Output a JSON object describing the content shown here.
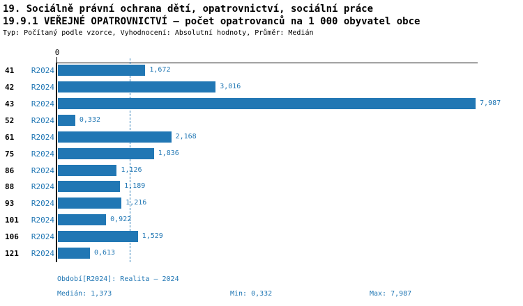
{
  "header": {
    "title_line1": "19. Sociálně právní ochrana dětí, opatrovnictví, sociální práce",
    "title_line2": "19.9.1 VEŘEJNÉ OPATROVNICTVÍ – počet opatrovanců na 1 000 obyvatel obce",
    "subtitle": "Typ: Počítaný podle vzorce, Vyhodnocení: Absolutní hodnoty, Průměr: Medián"
  },
  "chart_data": {
    "type": "bar",
    "orientation": "horizontal",
    "title": "19.9.1 VEŘEJNÉ OPATROVNICTVÍ – počet opatrovanců na 1 000 obyvatel obce",
    "categories": [
      "41",
      "42",
      "43",
      "52",
      "61",
      "75",
      "86",
      "88",
      "93",
      "101",
      "106",
      "121"
    ],
    "series_label": "R2024",
    "values": [
      1.672,
      3.016,
      7.987,
      0.332,
      2.168,
      1.836,
      1.126,
      1.189,
      1.216,
      0.922,
      1.529,
      0.613
    ],
    "value_labels": [
      "1,672",
      "3,016",
      "7,987",
      "0,332",
      "2,168",
      "1,836",
      "1,126",
      "1,189",
      "1,216",
      "0,922",
      "1,529",
      "0,613"
    ],
    "xlim": [
      0,
      8.03
    ],
    "zero_tick_label": "0",
    "median_line_value": 1.373,
    "median_value_label": "1,373",
    "bar_color": "#2177B4",
    "axis_color": "#000000",
    "grid": "off",
    "legend": "none"
  },
  "footer": {
    "period_label": "Období[R2024]: Realita – 2024",
    "median_label": "Medián: 1,373",
    "min_label": "Min: 0,332",
    "max_label": "Max: 7,987"
  }
}
